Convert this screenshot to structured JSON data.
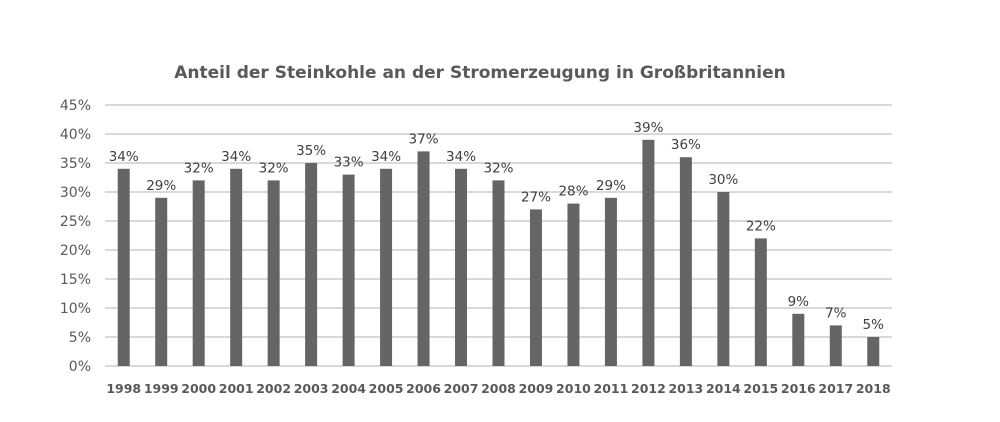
{
  "chart_data": {
    "type": "bar",
    "title": "Anteil der Steinkohle an der Stromerzeugung in Großbritannien",
    "xlabel": "",
    "ylabel": "",
    "categories": [
      "1998",
      "1999",
      "2000",
      "2001",
      "2002",
      "2003",
      "2004",
      "2005",
      "2006",
      "2007",
      "2008",
      "2009",
      "2010",
      "2011",
      "2012",
      "2013",
      "2014",
      "2015",
      "2016",
      "2017",
      "2018"
    ],
    "values": [
      34,
      29,
      32,
      34,
      32,
      35,
      33,
      34,
      37,
      34,
      32,
      27,
      28,
      29,
      39,
      36,
      30,
      22,
      9,
      7,
      5
    ],
    "data_labels": [
      "34%",
      "29%",
      "32%",
      "34%",
      "32%",
      "35%",
      "33%",
      "34%",
      "37%",
      "34%",
      "32%",
      "27%",
      "28%",
      "29%",
      "39%",
      "36%",
      "30%",
      "22%",
      "9%",
      "7%",
      "5%"
    ],
    "ylim": [
      0,
      45
    ],
    "yticks": [
      0,
      5,
      10,
      15,
      20,
      25,
      30,
      35,
      40,
      45
    ],
    "ytick_labels": [
      "0%",
      "5%",
      "10%",
      "15%",
      "20%",
      "25%",
      "30%",
      "35%",
      "40%",
      "45%"
    ],
    "grid": true,
    "legend": "none",
    "bar_color": "#656565",
    "grid_color": "#d9d9d9"
  }
}
